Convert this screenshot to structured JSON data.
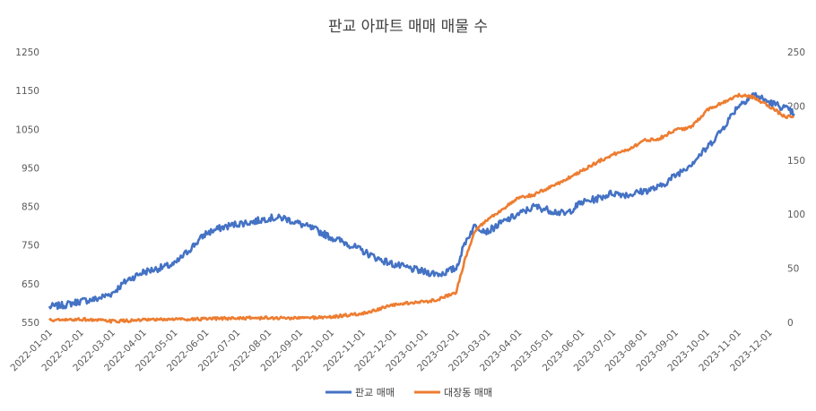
{
  "chart_data": {
    "type": "line",
    "title": "판교 아파트 매매 매물 수",
    "x_tick_labels": [
      "2022-01-01",
      "2022-02-01",
      "2022-03-01",
      "2022-04-01",
      "2022-05-01",
      "2022-06-01",
      "2022-07-01",
      "2022-08-01",
      "2022-09-01",
      "2022-10-01",
      "2022-11-01",
      "2022-12-01",
      "2023-01-01",
      "2023-02-01",
      "2023-03-01",
      "2023-04-01",
      "2023-05-01",
      "2023-06-01",
      "2023-07-01",
      "2023-08-01",
      "2023-09-01",
      "2023-10-01",
      "2023-11-01",
      "2023-12-01"
    ],
    "y_left": {
      "min": 550,
      "max": 1250,
      "ticks": [
        "550",
        "650",
        "750",
        "850",
        "950",
        "1050",
        "1150",
        "1250"
      ]
    },
    "y_right": {
      "min": 0,
      "max": 250,
      "ticks": [
        "0",
        "50",
        "100",
        "150",
        "200",
        "250"
      ]
    },
    "series": [
      {
        "name": "판교 매매",
        "axis": "left",
        "color": "#4472C4",
        "x_month": [
          0,
          0.5,
          1,
          1.5,
          2,
          2.5,
          3,
          3.5,
          4,
          4.5,
          5,
          5.5,
          6,
          6.5,
          7,
          7.5,
          8,
          8.5,
          9,
          9.5,
          10,
          10.5,
          11,
          11.5,
          12,
          12.5,
          13,
          13.3,
          13.6,
          14,
          14.5,
          15,
          15.5,
          16,
          16.5,
          17,
          17.5,
          18,
          18.5,
          19,
          19.5,
          20,
          20.5,
          21,
          21.5,
          22,
          22.5,
          23,
          23.5,
          23.8
        ],
        "values": [
          590,
          595,
          605,
          610,
          625,
          660,
          680,
          690,
          700,
          740,
          780,
          795,
          805,
          810,
          820,
          820,
          805,
          790,
          770,
          755,
          735,
          715,
          700,
          690,
          680,
          675,
          690,
          760,
          800,
          785,
          810,
          830,
          850,
          840,
          830,
          860,
          870,
          885,
          880,
          890,
          900,
          930,
          960,
          1000,
          1050,
          1110,
          1140,
          1120,
          1105,
          1090
        ]
      },
      {
        "name": "대장동 매매",
        "axis": "right",
        "color": "#ED7D31",
        "x_month": [
          0,
          0.5,
          1,
          1.5,
          2,
          3,
          4,
          5,
          6,
          7,
          8,
          9,
          10,
          10.5,
          11,
          11.5,
          12,
          12.5,
          13,
          13.3,
          13.6,
          14,
          14.5,
          15,
          15.5,
          16,
          16.5,
          17,
          17.5,
          18,
          18.5,
          19,
          19.5,
          20,
          20.5,
          21,
          21.5,
          22,
          22.5,
          23,
          23.5,
          23.8
        ],
        "values": [
          2,
          2,
          3,
          2,
          1,
          2,
          3,
          3,
          4,
          4,
          4,
          5,
          8,
          12,
          16,
          18,
          19,
          22,
          28,
          60,
          85,
          95,
          105,
          115,
          118,
          125,
          132,
          140,
          148,
          155,
          160,
          168,
          170,
          178,
          180,
          196,
          203,
          210,
          208,
          200,
          190,
          190
        ]
      }
    ],
    "legend": [
      "판교 매매",
      "대장동 매매"
    ],
    "legend_position": "bottom",
    "grid": false
  }
}
